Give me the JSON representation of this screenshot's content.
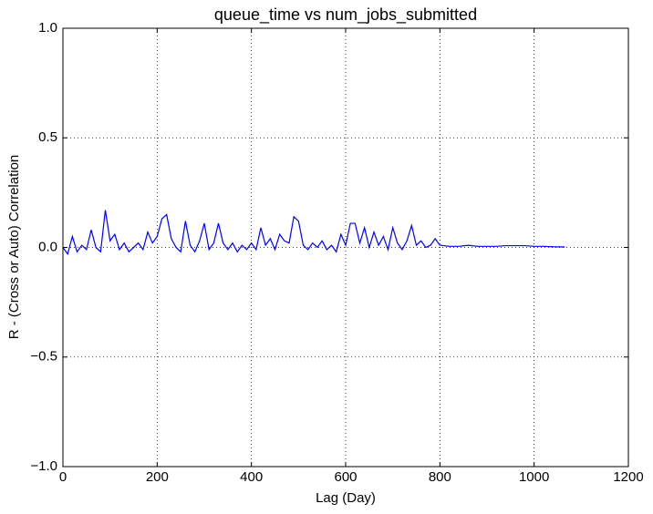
{
  "chart_data": {
    "type": "line",
    "title": "queue_time vs num_jobs_submitted",
    "xlabel": "Lag (Day)",
    "ylabel": "R - (Cross or Auto) Correlation",
    "x": [
      0,
      10,
      20,
      30,
      40,
      50,
      60,
      70,
      80,
      90,
      100,
      110,
      120,
      130,
      140,
      150,
      160,
      170,
      180,
      190,
      200,
      210,
      220,
      230,
      240,
      250,
      260,
      270,
      280,
      290,
      300,
      310,
      320,
      330,
      340,
      350,
      360,
      370,
      380,
      390,
      400,
      410,
      420,
      430,
      440,
      450,
      460,
      470,
      480,
      490,
      500,
      510,
      520,
      530,
      540,
      550,
      560,
      570,
      580,
      590,
      600,
      610,
      620,
      630,
      640,
      650,
      660,
      670,
      680,
      690,
      700,
      710,
      720,
      730,
      740,
      750,
      760,
      770,
      780,
      790,
      800,
      820,
      840,
      860,
      880,
      900,
      920,
      940,
      960,
      980,
      1000,
      1020,
      1040,
      1065
    ],
    "series": [
      {
        "name": "queue_time",
        "color": "#0000ff",
        "values": [
          0.0,
          -0.03,
          0.05,
          -0.02,
          0.01,
          -0.01,
          0.08,
          0.0,
          -0.02,
          0.17,
          0.03,
          0.06,
          -0.01,
          0.02,
          -0.02,
          0.0,
          0.02,
          -0.01,
          0.07,
          0.02,
          0.05,
          0.13,
          0.15,
          0.04,
          0.0,
          -0.02,
          0.12,
          0.01,
          -0.02,
          0.03,
          0.11,
          -0.01,
          0.02,
          0.11,
          0.02,
          -0.01,
          0.02,
          -0.02,
          0.01,
          -0.01,
          0.02,
          -0.01,
          0.09,
          0.01,
          0.04,
          -0.01,
          0.06,
          0.03,
          0.02,
          0.14,
          0.12,
          0.01,
          -0.01,
          0.02,
          0.0,
          0.03,
          -0.01,
          0.01,
          -0.02,
          0.06,
          0.01,
          0.11,
          0.11,
          0.02,
          0.09,
          0.0,
          0.07,
          0.01,
          0.05,
          -0.01,
          0.09,
          0.02,
          -0.01,
          0.03,
          0.1,
          0.01,
          0.03,
          0.0,
          0.01,
          0.04,
          0.01,
          0.005,
          0.005,
          0.01,
          0.005,
          0.005,
          0.005,
          0.008,
          0.008,
          0.008,
          0.005,
          0.005,
          0.003,
          0.002
        ]
      }
    ],
    "xlim": [
      0,
      1200
    ],
    "xticks": [
      0,
      200,
      400,
      600,
      800,
      1000,
      1200
    ],
    "ylim": [
      -1,
      1
    ],
    "yticks": [
      {
        "value": -1,
        "label": "−1.0"
      },
      {
        "value": -0.5,
        "label": "−0.5"
      },
      {
        "value": 0,
        "label": "0.0"
      },
      {
        "value": 0.5,
        "label": "0.5"
      },
      {
        "value": 1,
        "label": "1.0"
      }
    ],
    "grid": true
  }
}
